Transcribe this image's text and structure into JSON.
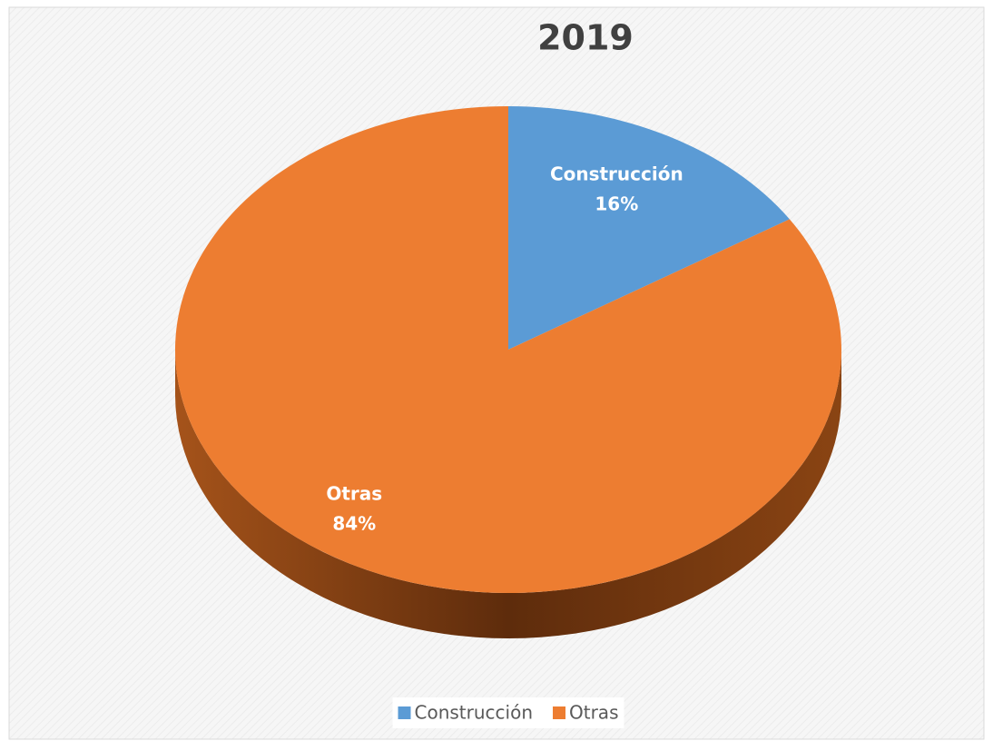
{
  "chart_data": {
    "type": "pie",
    "title": "2019",
    "categories": [
      "Construcción",
      "Otras"
    ],
    "values": [
      16,
      84
    ],
    "value_labels": [
      "16%",
      "84%"
    ],
    "colors": [
      "#5b9bd5",
      "#ed7d31"
    ],
    "legend": "bottom"
  }
}
